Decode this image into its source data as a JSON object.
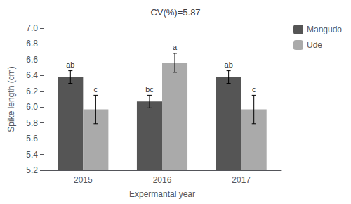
{
  "chart_data": {
    "type": "bar",
    "title": "CV(%)=5.87",
    "categories": [
      "2015",
      "2016",
      "2017"
    ],
    "series": [
      {
        "name": "Mangudo",
        "color": "#555555",
        "values": [
          6.38,
          6.07,
          6.38
        ],
        "errors": [
          0.08,
          0.08,
          0.08
        ],
        "letters": [
          "ab",
          "bc",
          "ab"
        ]
      },
      {
        "name": "Ude",
        "color": "#aaaaaa",
        "values": [
          5.97,
          6.56,
          5.97
        ],
        "errors": [
          0.18,
          0.12,
          0.18
        ],
        "letters": [
          "c",
          "a",
          "c"
        ]
      }
    ],
    "xlabel": "Expermantal year",
    "ylabel": "Spike length (cm)",
    "ylim": [
      5.2,
      7.0
    ],
    "yticks": [
      5.2,
      5.4,
      5.6,
      5.8,
      {
        "value": 6.0,
        "label": "6.0"
      },
      6.2,
      6.4,
      6.6,
      6.8,
      {
        "value": 7.0,
        "label": "7.0"
      }
    ],
    "legend": "upper right",
    "grid": false
  }
}
